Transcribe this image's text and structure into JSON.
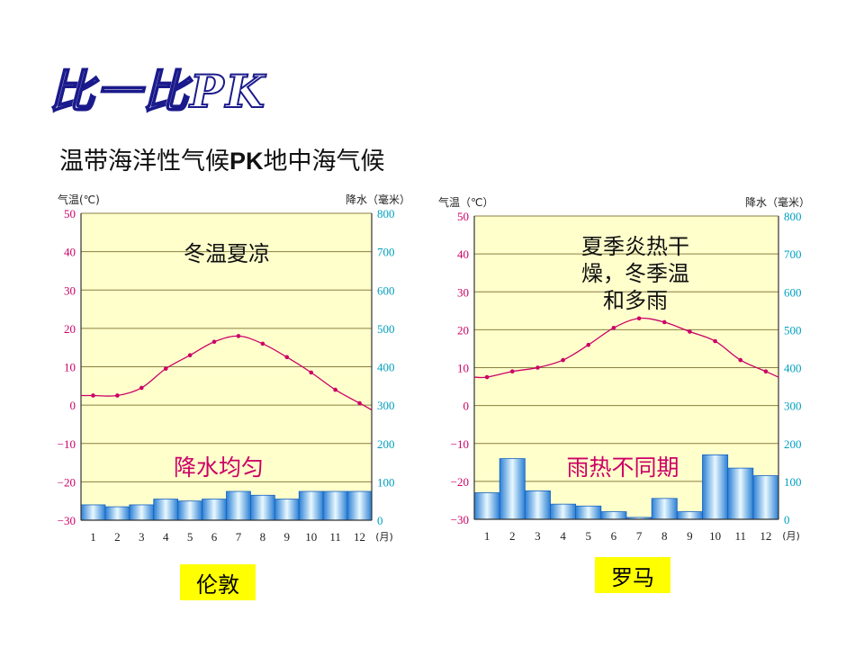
{
  "slide": {
    "heading": "比一比PK",
    "subtitle_a": "温带海洋性气候",
    "subtitle_pk": "PK",
    "subtitle_b": "地中海气候"
  },
  "colors": {
    "temp": "#cc0066",
    "tick": "#00a0c0",
    "grid": "#8a7f40",
    "bar_edge": "#1860c0",
    "bar_mid": "#e8f8ff",
    "bar_side": "#2a7fd4",
    "city_bg": "#ffff00",
    "plot_bg": "#ffffcc"
  },
  "chart_data": [
    {
      "type": "bar+line",
      "city": "伦敦",
      "y_left_label": "气温(℃)",
      "y_right_label": "降水（毫米）",
      "x_unit": "(月)",
      "annotation_temp": "冬温夏凉",
      "annotation_precip": "降水均匀",
      "ylim_temp": [
        -30,
        50
      ],
      "ylim_precip": [
        0,
        800
      ],
      "temp_ticks": [
        "50",
        "40",
        "30",
        "20",
        "10",
        "0",
        "−10",
        "−20",
        "−30"
      ],
      "precip_ticks": [
        "800",
        "700",
        "600",
        "500",
        "400",
        "300",
        "200",
        "100",
        "0"
      ],
      "months": [
        "1",
        "2",
        "3",
        "4",
        "5",
        "6",
        "7",
        "8",
        "9",
        "10",
        "11",
        "12"
      ],
      "temperature": [
        2.5,
        2.5,
        4.5,
        9.5,
        13,
        16.5,
        18,
        16,
        12.5,
        8.5,
        4,
        0.5
      ],
      "precipitation": [
        40,
        35,
        40,
        55,
        50,
        55,
        75,
        65,
        55,
        75,
        75,
        75
      ]
    },
    {
      "type": "bar+line",
      "city": "罗马",
      "y_left_label": "气温（℃）",
      "y_right_label": "降水（毫米）",
      "x_unit": "(月)",
      "annotation_temp_lines": [
        "夏季炎热干",
        "燥，冬季温",
        "和多雨"
      ],
      "annotation_precip": "雨热不同期",
      "ylim_temp": [
        -30,
        50
      ],
      "ylim_precip": [
        0,
        800
      ],
      "temp_ticks": [
        "50",
        "40",
        "30",
        "20",
        "10",
        "0",
        "−10",
        "−20",
        "−30"
      ],
      "precip_ticks": [
        "800",
        "700",
        "600",
        "500",
        "400",
        "300",
        "200",
        "100",
        "0"
      ],
      "months": [
        "1",
        "2",
        "3",
        "4",
        "5",
        "6",
        "7",
        "8",
        "9",
        "10",
        "11",
        "12"
      ],
      "temperature": [
        7.5,
        9,
        10,
        12,
        16,
        20.5,
        23,
        22,
        19.5,
        17,
        12,
        9
      ],
      "precipitation": [
        70,
        160,
        75,
        40,
        35,
        20,
        5,
        55,
        20,
        170,
        135,
        115
      ]
    }
  ]
}
